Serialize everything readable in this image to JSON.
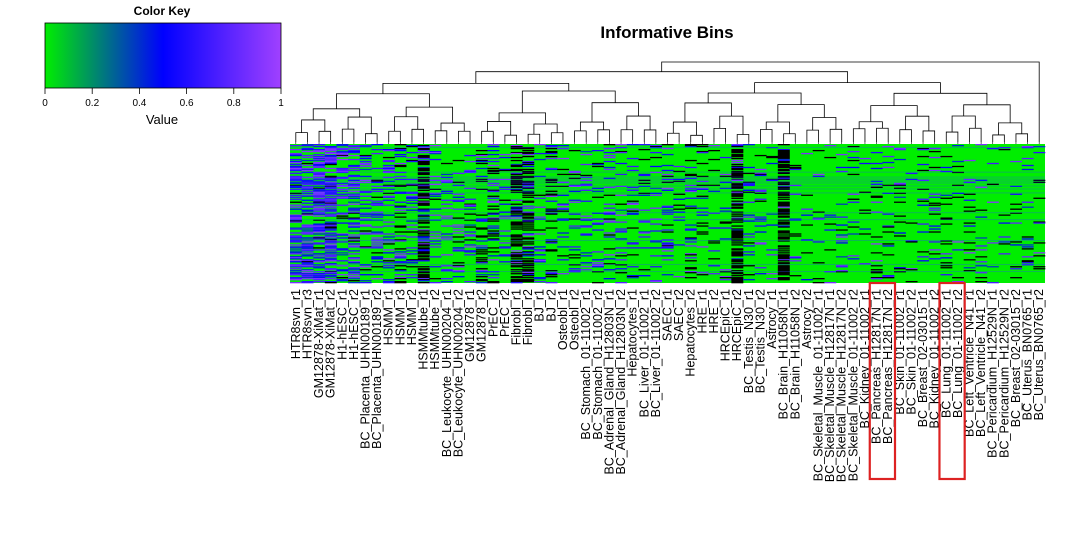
{
  "chart_data": {
    "type": "heatmap",
    "title": "Informative Bins",
    "color_key": {
      "title": "Color Key",
      "xlabel": "Value",
      "ticks": [
        "0",
        "0.2",
        "0.4",
        "0.6",
        "0.8",
        "1"
      ],
      "range": [
        0,
        1
      ],
      "colors": [
        "#00ee00",
        "#0000ff",
        "#a040ff"
      ]
    },
    "missing_color": "#000000",
    "columns": [
      "HTR8svn_r1",
      "HTR8svn_r3",
      "GM12878-XiMat_r1",
      "GM12878-XiMat_r2",
      "H1-hESC_r1",
      "H1-hESC_r2",
      "BC_Placenta_UHN00189_r1",
      "BC_Placenta_UHN00189_r2",
      "HSMM_r1",
      "HSMM_r3",
      "HSMM_r2",
      "HSMMtube_r1",
      "HSMMtube_r2",
      "BC_Leukocyte_UHN00204_r1",
      "BC_Leukocyte_UHN00204_r2",
      "GM12878_r1",
      "GM12878_r2",
      "PrEC_r1",
      "PrEC_r2",
      "Fibrobl_r1",
      "Fibrobl_r2",
      "BJ_r1",
      "BJ_r2",
      "Osteobl_r1",
      "Osteobl_r2",
      "BC_Stomach_01-11002_r1",
      "BC_Stomach_01-11002_r2",
      "BC_Adrenal_Gland_H12803N_r1",
      "BC_Adrenal_Gland_H12803N_r2",
      "Hepatocytes_r1",
      "BC_Liver_01-11002_r1",
      "BC_Liver_01-11002_r2",
      "SAEC_r1",
      "SAEC_r2",
      "Hepatocytes_r2",
      "HRE_r1",
      "HRE_r2",
      "HRCEpiC_r1",
      "HRCEpiC_r2",
      "BC_Testis_N30_r1",
      "BC_Testis_N30_r2",
      "Astrocy_r1",
      "BC_Brain_H11058N_r1",
      "BC_Brain_H11058N_r2",
      "Astrocy_r2",
      "BC_Skeletal_Muscle_01-11002_r1",
      "BC_Skeletal_Muscle_H12817N_r1",
      "BC_Skeletal_Muscle_H12817N_r2",
      "BC_Skeletal_Muscle_01-11002_r2",
      "BC_Kidney_01-11002_r1",
      "BC_Pancreas_H12817N_r1",
      "BC_Pancreas_H12817N_r2",
      "BC_Skin_01-11002_r1",
      "BC_Skin_01-11002_r2",
      "BC_Breast_02-03015_r1",
      "BC_Kidney_01-11002_r2",
      "BC_Lung_01-11002_r1",
      "BC_Lung_01-11002_r2",
      "BC_Left_Ventricle_N41_r1",
      "BC_Left_Ventricle_N41_r2",
      "BC_Pericardium_H12529N_r1",
      "BC_Pericardium_H12529N_r2",
      "BC_Breast_02-03015_r2",
      "BC_Uterus_BN0765_r1",
      "BC_Uterus_BN0765_r2"
    ],
    "highlighted_columns": [
      [
        "BC_Pancreas_H12817N_r1",
        "BC_Pancreas_H12817N_r2"
      ],
      [
        "BC_Lung_01-11002_r1",
        "BC_Lung_01-11002_r2"
      ]
    ],
    "highlight_color": "#dd2222",
    "rows": 140,
    "column_profile": [
      0.5,
      0.55,
      0.62,
      0.6,
      0.35,
      0.4,
      0.25,
      0.25,
      0.2,
      0.18,
      0.18,
      0.2,
      0.2,
      0.15,
      0.15,
      0.15,
      0.15,
      0.12,
      0.12,
      0.12,
      0.12,
      0.1,
      0.1,
      0.1,
      0.1,
      0.1,
      0.1,
      0.12,
      0.12,
      0.12,
      0.12,
      0.12,
      0.1,
      0.1,
      0.12,
      0.08,
      0.08,
      0.08,
      0.08,
      0.08,
      0.08,
      0.08,
      0.08,
      0.08,
      0.08,
      0.06,
      0.06,
      0.06,
      0.06,
      0.06,
      0.06,
      0.06,
      0.06,
      0.06,
      0.06,
      0.06,
      0.06,
      0.06,
      0.06,
      0.06,
      0.06,
      0.06,
      0.06,
      0.06,
      0.06
    ],
    "missing_columns": {
      "11": 0.5,
      "19": 0.45,
      "20": 0.45,
      "38": 0.6,
      "42": 0.6,
      "16": 0.12,
      "17": 0.15,
      "34": 0.12,
      "9": 0.12,
      "22": 0.15
    }
  }
}
